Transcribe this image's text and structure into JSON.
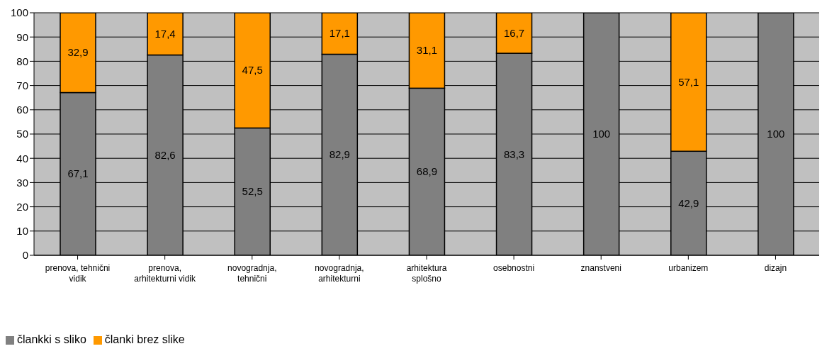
{
  "chart_data": {
    "type": "bar",
    "stacked": true,
    "categories": [
      "prenova, tehnični vidik",
      "prenova, arhitekturni vidik",
      "novogradnja, tehnični",
      "novogradnja, arhitekturni",
      "arhitektura splošno",
      "osebnostni",
      "znanstveni",
      "urbanizem",
      "dizajn"
    ],
    "series": [
      {
        "name": "člankki s sliko",
        "color": "#808080",
        "values": [
          67.1,
          82.6,
          52.5,
          82.9,
          68.9,
          83.3,
          100,
          42.9,
          100
        ],
        "value_labels": [
          "67,1",
          "82,6",
          "52,5",
          "82,9",
          "68,9",
          "83,3",
          "100",
          "42,9",
          "100"
        ]
      },
      {
        "name": "članki brez slike",
        "color": "#ff9900",
        "values": [
          32.9,
          17.4,
          47.5,
          17.1,
          31.1,
          16.7,
          0,
          57.1,
          0
        ],
        "value_labels": [
          "32,9",
          "17,4",
          "47,5",
          "17,1",
          "31,1",
          "16,7",
          null,
          "57,1",
          null
        ]
      }
    ],
    "ylim": [
      0,
      100
    ],
    "yticks": [
      0,
      10,
      20,
      30,
      40,
      50,
      60,
      70,
      80,
      90,
      100
    ],
    "grid": "y",
    "legend": "bottom left"
  }
}
